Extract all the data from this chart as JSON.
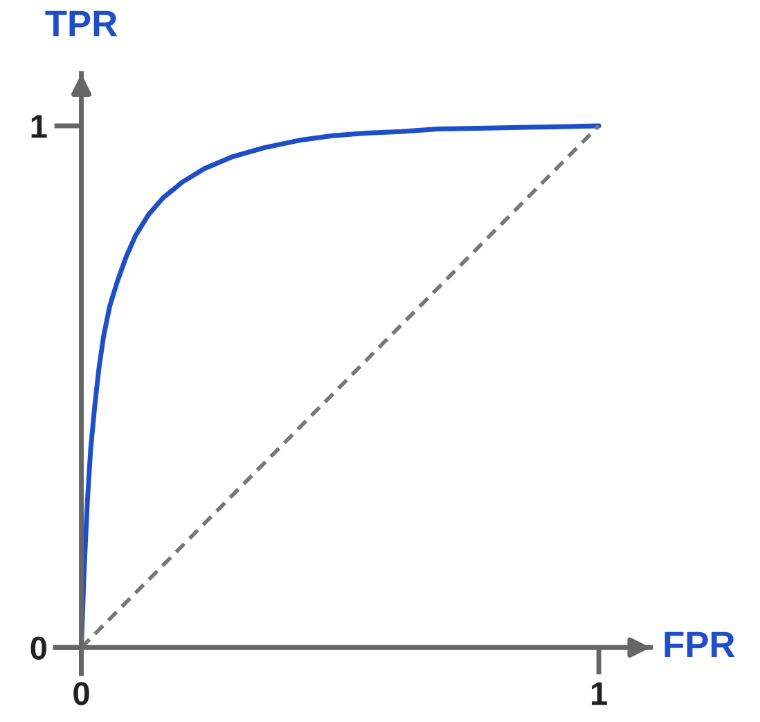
{
  "chart_data": {
    "type": "line",
    "xlabel": "FPR",
    "ylabel": "TPR",
    "series": [
      {
        "color": "#1f4fc8",
        "line_style": "solid",
        "x": [
          0,
          0.005,
          0.012,
          0.018,
          0.026,
          0.034,
          0.043,
          0.055,
          0.07,
          0.087,
          0.105,
          0.13,
          0.158,
          0.195,
          0.238,
          0.29,
          0.353,
          0.42,
          0.485,
          0.55,
          0.618,
          0.689,
          0.8,
          0.91,
          1
        ],
        "values": [
          0,
          0.14,
          0.286,
          0.38,
          0.464,
          0.535,
          0.597,
          0.655,
          0.703,
          0.75,
          0.79,
          0.83,
          0.862,
          0.892,
          0.918,
          0.94,
          0.958,
          0.972,
          0.981,
          0.986,
          0.989,
          0.994,
          0.996,
          0.998,
          1
        ]
      },
      {
        "color": "#777777",
        "line_style": "dashed",
        "x": [
          0,
          1
        ],
        "values": [
          0,
          1
        ]
      }
    ],
    "xlim": [
      -0.05,
      1.1
    ],
    "ylim": [
      -0.05,
      1.1
    ],
    "xticks": [
      0,
      1
    ],
    "yticks": [
      0,
      1
    ],
    "grid": false,
    "legend": false
  }
}
